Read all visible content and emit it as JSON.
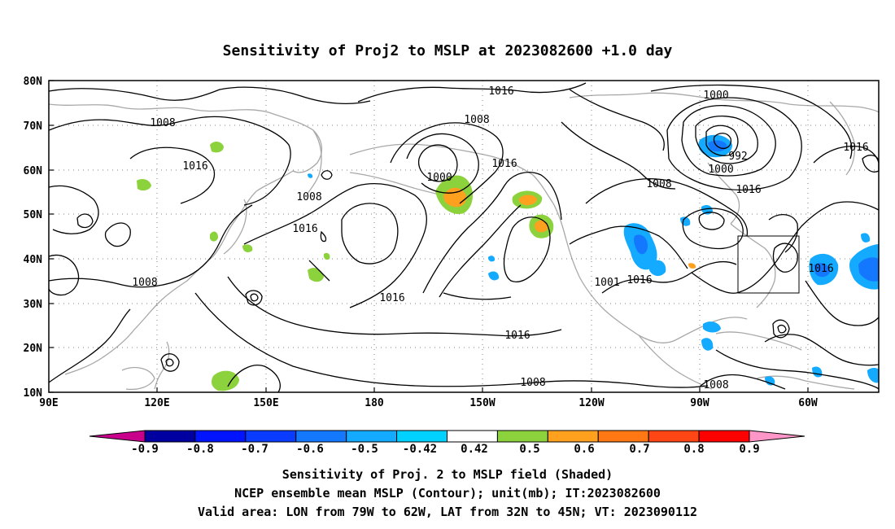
{
  "title": "Sensitivity of Proj2 to MSLP at 2023082600 +1.0 day",
  "lat_ticks": [
    "80N",
    "70N",
    "60N",
    "50N",
    "40N",
    "30N",
    "20N",
    "10N"
  ],
  "lon_ticks": [
    "90E",
    "120E",
    "150E",
    "180",
    "150W",
    "120W",
    "90W",
    "60W"
  ],
  "contour_labels": {
    "c1016_top": "1016",
    "c1000_top_right": "1000",
    "c1008_top": "1008",
    "c1008_left": "1008",
    "c1016_left": "1016",
    "c1016_mid": "1016",
    "c1000_mid": "1000",
    "c992": "992",
    "c1000_low_right": "1000",
    "c1016_far_right": "1016",
    "c1008_jp": "1008",
    "c1008_right": "1008",
    "c1016_right": "1016",
    "c1016_pac": "1016",
    "c1008_sw": "1008",
    "c1016_south": "1016",
    "c1016_lower": "1016",
    "c1001": "1001",
    "c1016_us": "1016",
    "c1016_atl": "1016",
    "c1008_bottom": "1008",
    "c1008_bottom_right": "1008"
  },
  "colorbar": {
    "labels": [
      "-0.9",
      "-0.8",
      "-0.7",
      "-0.6",
      "-0.5",
      "-0.42",
      "0.42",
      "0.5",
      "0.6",
      "0.7",
      "0.8",
      "0.9"
    ],
    "colors": [
      "#c8008c",
      "#0000a0",
      "#0014ff",
      "#0a3cff",
      "#1478ff",
      "#14aaff",
      "#00d2ff",
      "#ffffff",
      "#8cd23c",
      "#ffa01e",
      "#ff7814",
      "#ff4614",
      "#ff0000",
      "#ff96c8"
    ]
  },
  "valid_area_box": {
    "lon_min": -79,
    "lon_max": -62,
    "lat_min": 32,
    "lat_max": 45
  },
  "footer": {
    "line1": "Sensitivity of Proj. 2 to MSLP field (Shaded)",
    "line2": "NCEP ensemble mean MSLP (Contour); unit(mb); IT:2023082600",
    "line3": "Valid area: LON from 79W to 62W, LAT from 32N to 45N; VT: 2023090112"
  }
}
